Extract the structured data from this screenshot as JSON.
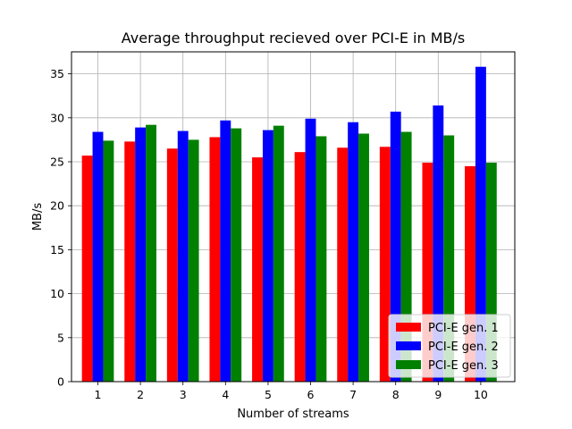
{
  "chart_data": {
    "type": "bar",
    "title": "Average throughput recieved over PCI-E in MB/s",
    "xlabel": "Number of streams",
    "ylabel": "MB/s",
    "categories": [
      "1",
      "2",
      "3",
      "4",
      "5",
      "6",
      "7",
      "8",
      "9",
      "10"
    ],
    "ylim": [
      0,
      37.5
    ],
    "yticks": [
      0,
      5,
      10,
      15,
      20,
      25,
      30,
      35
    ],
    "grid": true,
    "legend_position": "lower-right",
    "series": [
      {
        "name": "PCI-E gen. 1",
        "color": "#ff0000",
        "values": [
          25.7,
          27.3,
          26.5,
          27.8,
          25.5,
          26.1,
          26.6,
          26.7,
          24.9,
          24.5
        ]
      },
      {
        "name": "PCI-E gen. 2",
        "color": "#0000ff",
        "values": [
          28.4,
          28.9,
          28.5,
          29.7,
          28.6,
          29.9,
          29.5,
          30.7,
          31.4,
          35.8
        ]
      },
      {
        "name": "PCI-E gen. 3",
        "color": "#008000",
        "values": [
          27.4,
          29.2,
          27.5,
          28.8,
          29.1,
          27.9,
          28.2,
          28.4,
          28.0,
          24.9
        ]
      }
    ]
  }
}
